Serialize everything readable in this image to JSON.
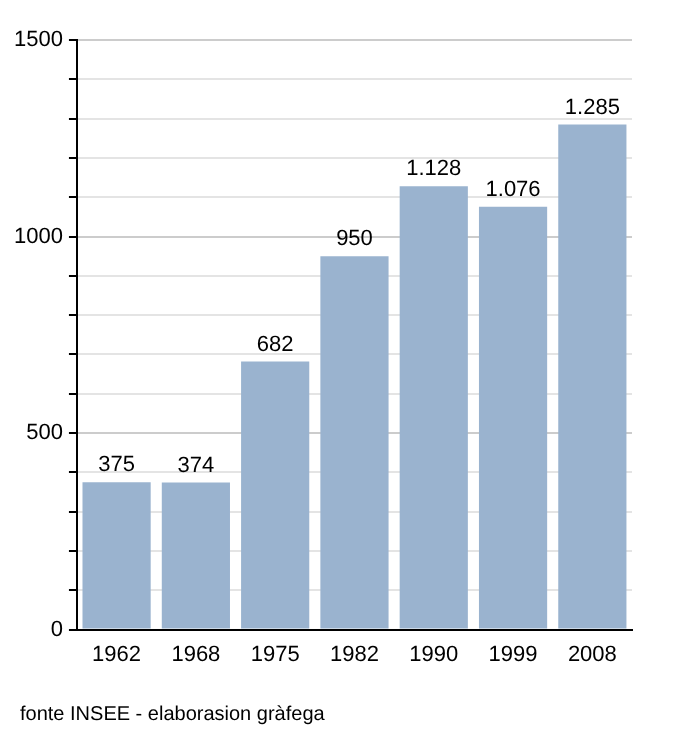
{
  "chart_data": {
    "type": "bar",
    "categories": [
      "1962",
      "1968",
      "1975",
      "1982",
      "1990",
      "1999",
      "2008"
    ],
    "values": [
      375,
      374,
      682,
      950,
      1128,
      1076,
      1285
    ],
    "value_labels": [
      "375",
      "374",
      "682",
      "950",
      "1.128",
      "1.076",
      "1.285"
    ],
    "color": "#9ab3cf",
    "ylim": [
      0,
      1500
    ],
    "yticks": [
      0,
      {
        "value": 100,
        "label": null
      },
      {
        "value": 200,
        "label": null
      },
      {
        "value": 300,
        "label": null
      },
      {
        "value": 400,
        "label": null
      },
      500,
      {
        "value": 600,
        "label": null
      },
      {
        "value": 700,
        "label": null
      },
      {
        "value": 800,
        "label": null
      },
      {
        "value": 900,
        "label": null
      },
      1000,
      {
        "value": 1100,
        "label": null
      },
      {
        "value": 1200,
        "label": null
      },
      {
        "value": 1300,
        "label": null
      },
      {
        "value": 1400,
        "label": null
      },
      1500
    ],
    "grid": "y",
    "annotations": [
      "fonte INSEE - elaborasion gràfega"
    ]
  }
}
